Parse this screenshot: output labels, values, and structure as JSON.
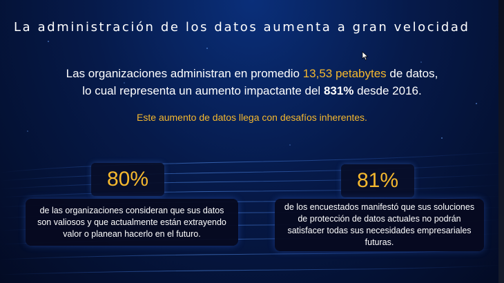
{
  "slide": {
    "title": "La administración de los datos aumenta a gran velocidad",
    "headline": {
      "line1_prefix": "Las organizaciones administran en promedio ",
      "line1_highlight": "13,53 petabytes",
      "line1_suffix": " de datos,",
      "line2_prefix": "lo cual representa un aumento impactante del ",
      "line2_bold": "831%",
      "line2_suffix": " desde 2016."
    },
    "subheadline": "Este aumento de datos llega con desafíos inherentes.",
    "stats": [
      {
        "value": "80%",
        "description": "de las organizaciones consideran que sus datos son valiosos y que actualmente están extrayendo valor o planean hacerlo en el futuro."
      },
      {
        "value": "81%",
        "description": "de los encuestados manifestó que sus soluciones de protección de datos actuales no podrán satisfacer todas sus necesidades empresariales futuras."
      }
    ]
  },
  "colors": {
    "accent": "#f5b82e",
    "text": "#ffffff",
    "background": "#061a4a"
  },
  "icons": {
    "cursor": "mouse-pointer-icon"
  }
}
